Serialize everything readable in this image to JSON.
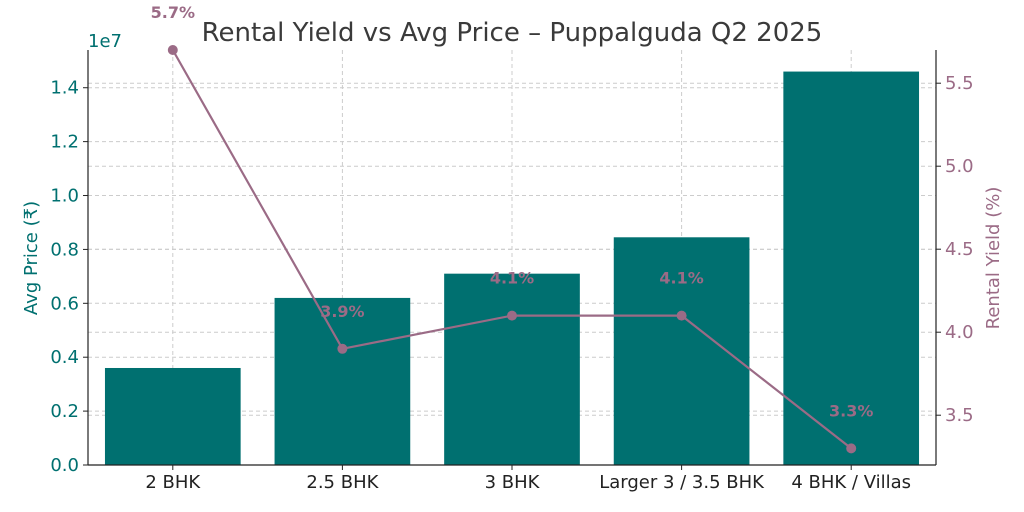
{
  "chart_data": {
    "type": "bar+line",
    "title": "Rental Yield vs Avg Price – Puppalguda Q2 2025",
    "categories": [
      "2 BHK",
      "2.5 BHK",
      "3 BHK",
      "Larger 3 / 3.5 BHK",
      "4 BHK / Villas"
    ],
    "series": [
      {
        "name": "Avg Price (₹)",
        "kind": "bar",
        "axis": "left",
        "color": "#007070",
        "values": [
          3600000,
          6200000,
          7100000,
          8450000,
          14600000
        ]
      },
      {
        "name": "Rental Yield (%)",
        "kind": "line",
        "axis": "right",
        "color": "#9b6b86",
        "values": [
          5.7,
          3.9,
          4.1,
          4.1,
          3.3
        ],
        "data_labels": [
          "5.7%",
          "3.9%",
          "4.1%",
          "4.1%",
          "3.3%"
        ]
      }
    ],
    "ylabel_left": "Avg Price (₹)",
    "ylabel_right": "Rental Yield (%)",
    "left_offset_label": "1e7",
    "ylim_left": [
      0,
      15400000
    ],
    "ylim_right": [
      3.2,
      5.7
    ],
    "yticks_left": [
      "0.0",
      "0.2",
      "0.4",
      "0.6",
      "0.8",
      "1.0",
      "1.2",
      "1.4"
    ],
    "yticks_right": [
      "3.5",
      "4.0",
      "4.5",
      "5.0",
      "5.5"
    ],
    "grid": true
  }
}
